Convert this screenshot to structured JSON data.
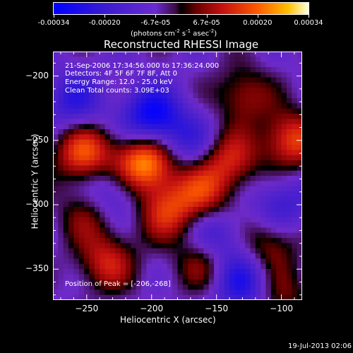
{
  "colorbar": {
    "ticks": [
      "-0.00034",
      "-0.00020",
      "-6.7e-05",
      "6.7e-05",
      "0.00020",
      "0.00034"
    ],
    "units_text": "(photons cm",
    "units_sup1": "-2",
    "units_mid": " s",
    "units_sup2": "-1",
    "units_end": " asec",
    "units_sup3": "-2",
    "units_close": ")"
  },
  "title": "Reconstructed RHESSI Image",
  "info": {
    "line1": "21-Sep-2006 17:34:56.000 to 17:36:24.000",
    "line2": "Detectors: 4F 5F 6F 7F 8F, Att 0",
    "line3": "Energy Range: 12.0 - 25.0 keV",
    "line4": "Clean    Total counts: 3.09E+03"
  },
  "peak_label": "Position of Peak = [-206,-268]",
  "date_stamp": "19-Jul-2013 02:06",
  "chart_data": {
    "type": "heatmap",
    "title": "Reconstructed RHESSI Image",
    "xlabel": "Heliocentric X (arcsec)",
    "ylabel": "Heliocentric Y (arcsec)",
    "xlim": [
      -276,
      -84
    ],
    "ylim": [
      -374,
      -181
    ],
    "x_ticks": [
      -250,
      -200,
      -150,
      -100
    ],
    "y_ticks": [
      -200,
      -250,
      -300,
      -350
    ],
    "x_tick_labels": [
      "−250",
      "−200",
      "−150",
      "−100"
    ],
    "y_tick_labels": [
      "−200",
      "−250",
      "−300",
      "−350"
    ],
    "colorbar_range": [
      -0.00034,
      0.00034
    ],
    "peak": [
      -206,
      -268
    ],
    "blobs": [
      {
        "x": -206,
        "y": -268,
        "amp": 1.0
      },
      {
        "x": -252,
        "y": -260,
        "amp": 0.75
      },
      {
        "x": -188,
        "y": -305,
        "amp": 0.6
      },
      {
        "x": -160,
        "y": -290,
        "amp": 0.55
      },
      {
        "x": -140,
        "y": -265,
        "amp": 0.55
      },
      {
        "x": -92,
        "y": -250,
        "amp": 0.7
      },
      {
        "x": -130,
        "y": -215,
        "amp": 0.45
      },
      {
        "x": -235,
        "y": -345,
        "amp": 0.55
      },
      {
        "x": -160,
        "y": -345,
        "amp": 0.45
      },
      {
        "x": -110,
        "y": -330,
        "amp": 0.45
      },
      {
        "x": -250,
        "y": -308,
        "amp": 0.35
      },
      {
        "x": -100,
        "y": -370,
        "amp": 0.35
      },
      {
        "x": -200,
        "y": -232,
        "amp": -0.75
      },
      {
        "x": -130,
        "y": -360,
        "amp": -0.6
      },
      {
        "x": -260,
        "y": -220,
        "amp": -0.45
      },
      {
        "x": -150,
        "y": -325,
        "amp": -0.45
      },
      {
        "x": -100,
        "y": -300,
        "amp": -0.4
      },
      {
        "x": -230,
        "y": -290,
        "amp": -0.4
      },
      {
        "x": -170,
        "y": -250,
        "amp": -0.35
      }
    ]
  }
}
